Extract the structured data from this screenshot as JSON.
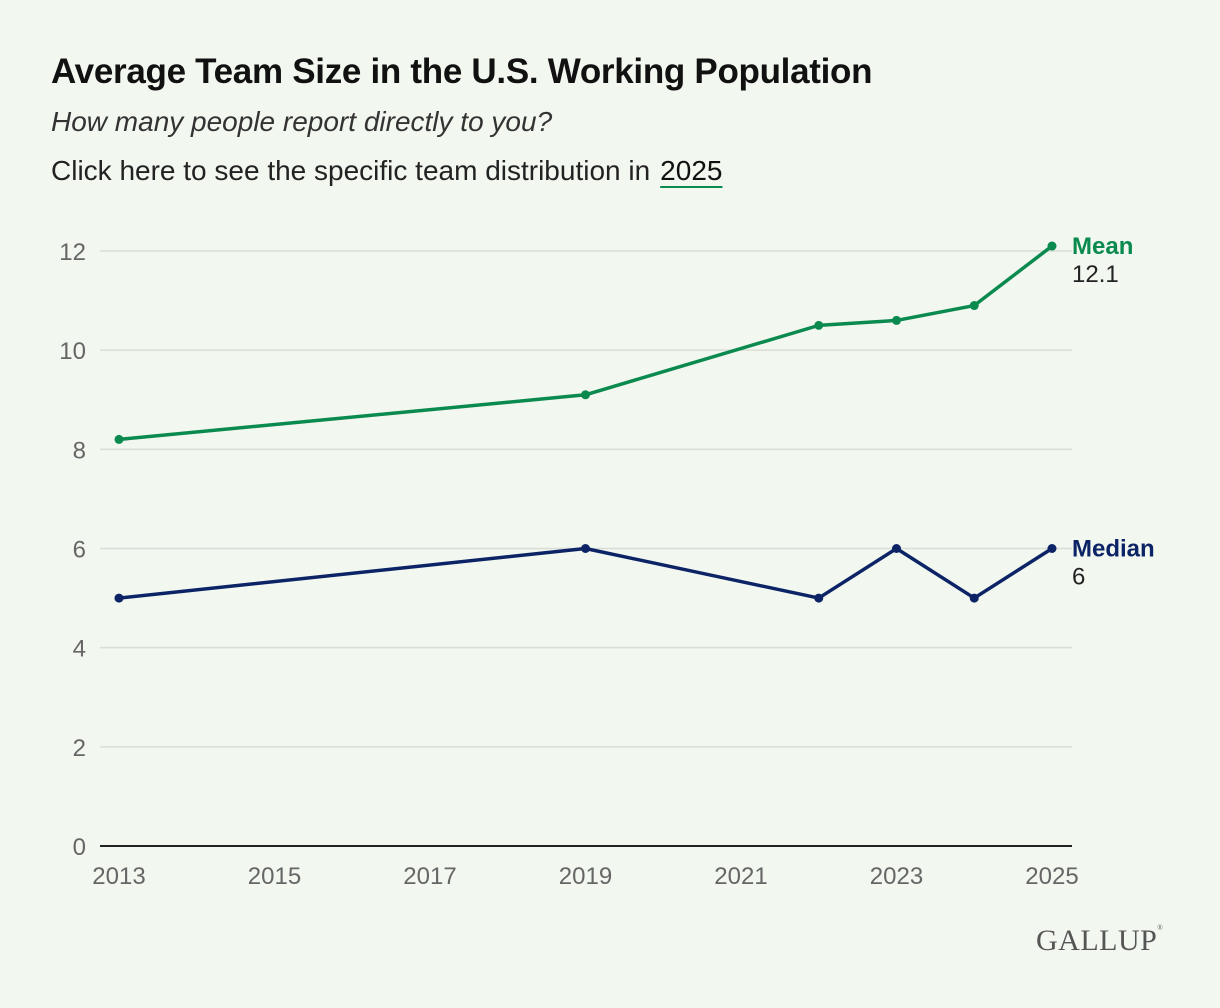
{
  "title": "Average Team Size in the U.S. Working Population",
  "subtitle": "How many people report directly to you?",
  "cta": {
    "text": "Click here to see the specific team distribution in",
    "link": "2025"
  },
  "logo": "GALLUP",
  "colors": {
    "mean": "#0a8a4f",
    "median": "#0c2466",
    "grid": "#d8ddd6",
    "axis": "#222222",
    "tick": "#666666"
  },
  "chart_data": {
    "type": "line",
    "title": "Average Team Size in the U.S. Working Population",
    "xlabel": "",
    "ylabel": "",
    "xlim": [
      2013,
      2025
    ],
    "ylim": [
      0,
      12
    ],
    "xticks": [
      2013,
      2015,
      2017,
      2019,
      2021,
      2023,
      2025
    ],
    "yticks": [
      0,
      2,
      4,
      6,
      8,
      10,
      12
    ],
    "grid": true,
    "series": [
      {
        "name": "Mean",
        "end_label": "12.1",
        "x": [
          2013,
          2019,
          2022,
          2023,
          2024,
          2025
        ],
        "values": [
          8.2,
          9.1,
          10.5,
          10.6,
          10.9,
          12.1
        ]
      },
      {
        "name": "Median",
        "end_label": "6",
        "x": [
          2013,
          2019,
          2022,
          2023,
          2024,
          2025
        ],
        "values": [
          5,
          6,
          5,
          6,
          5,
          6
        ]
      }
    ]
  }
}
